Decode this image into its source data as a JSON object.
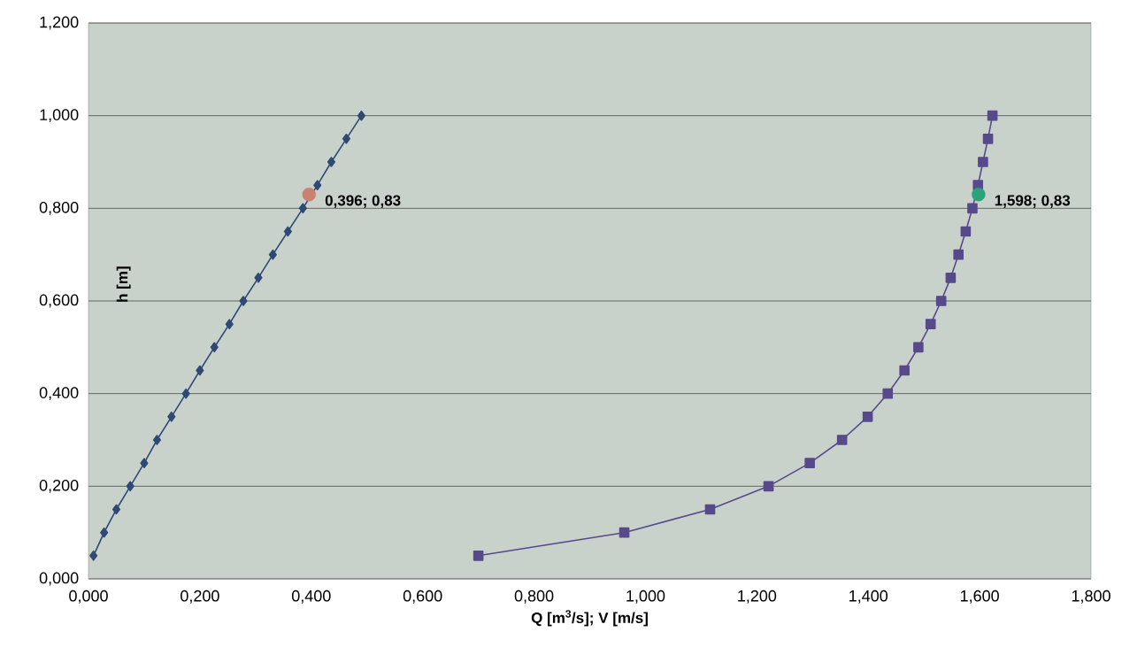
{
  "chart_data": {
    "type": "line",
    "xlabel": "Q [m$^{3}$/s]; V [m/s]",
    "ylabel": "h [m]",
    "xlim": [
      0,
      1.8
    ],
    "ylim": [
      0,
      1.2
    ],
    "xticks": [
      {
        "value": 0,
        "label": "0,000"
      },
      {
        "value": 0.2,
        "label": "0,200"
      },
      {
        "value": 0.4,
        "label": "0,400"
      },
      {
        "value": 0.6,
        "label": "0,600"
      },
      {
        "value": 0.8,
        "label": "0,800"
      },
      {
        "value": 1.0,
        "label": "1,000"
      },
      {
        "value": 1.2,
        "label": "1,200"
      },
      {
        "value": 1.4,
        "label": "1,400"
      },
      {
        "value": 1.6,
        "label": "1,600"
      },
      {
        "value": 1.8,
        "label": "1,800"
      }
    ],
    "yticks": [
      {
        "value": 0,
        "label": "0,000"
      },
      {
        "value": 0.2,
        "label": "0,200"
      },
      {
        "value": 0.4,
        "label": "0,400"
      },
      {
        "value": 0.6,
        "label": "0,600"
      },
      {
        "value": 0.8,
        "label": "0,800"
      },
      {
        "value": 1.0,
        "label": "1,000"
      },
      {
        "value": 1.2,
        "label": "1,200"
      }
    ],
    "grid": "y",
    "series": [
      {
        "color": "#2e4a74",
        "marker": "diamond",
        "x": [
          0.009,
          0.028,
          0.05,
          0.075,
          0.1,
          0.123,
          0.149,
          0.175,
          0.2,
          0.226,
          0.253,
          0.278,
          0.305,
          0.331,
          0.358,
          0.385,
          0.411,
          0.436,
          0.463,
          0.49
        ],
        "values": [
          0.05,
          0.1,
          0.15,
          0.2,
          0.25,
          0.3,
          0.35,
          0.4,
          0.45,
          0.5,
          0.55,
          0.6,
          0.65,
          0.7,
          0.75,
          0.8,
          0.85,
          0.9,
          0.95,
          1.0
        ]
      },
      {
        "color": "#574a8a",
        "marker": "square",
        "x": [
          0.7,
          0.962,
          1.116,
          1.221,
          1.295,
          1.353,
          1.399,
          1.435,
          1.465,
          1.49,
          1.512,
          1.531,
          1.548,
          1.562,
          1.575,
          1.587,
          1.597,
          1.606,
          1.615,
          1.623
        ],
        "values": [
          0.05,
          0.1,
          0.15,
          0.2,
          0.25,
          0.3,
          0.35,
          0.4,
          0.45,
          0.5,
          0.55,
          0.6,
          0.65,
          0.7,
          0.75,
          0.8,
          0.85,
          0.9,
          0.95,
          1.0
        ]
      },
      {
        "type": "scatter",
        "color": "#c98272",
        "marker": "circle",
        "x": [
          0.396
        ],
        "values": [
          0.83
        ]
      },
      {
        "type": "scatter",
        "color": "#2aa37a",
        "marker": "circle",
        "x": [
          1.598
        ],
        "values": [
          0.83
        ]
      }
    ],
    "annotations": [
      {
        "text": "0,396; 0,83",
        "x": 0.396,
        "y": 0.83
      },
      {
        "text": "1,598; 0,83",
        "x": 1.598,
        "y": 0.83
      }
    ]
  }
}
